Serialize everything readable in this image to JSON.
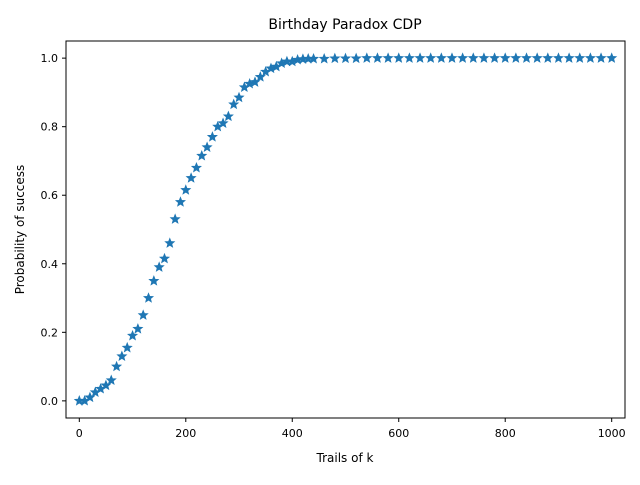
{
  "chart_data": {
    "type": "scatter",
    "title": "Birthday Paradox CDP",
    "xlabel": "Trails of k",
    "ylabel": "Probability of success",
    "xlim": [
      -25,
      1025
    ],
    "ylim": [
      -0.05,
      1.05
    ],
    "xticks": [
      0,
      200,
      400,
      600,
      800,
      1000
    ],
    "xtick_labels": [
      "0",
      "200",
      "400",
      "600",
      "800",
      "1000"
    ],
    "yticks": [
      0.0,
      0.2,
      0.4,
      0.6,
      0.8,
      1.0
    ],
    "ytick_labels": [
      "0.0",
      "0.2",
      "0.4",
      "0.6",
      "0.8",
      "1.0"
    ],
    "grid": false,
    "marker": "star",
    "color": "#1f77b4",
    "series": [
      {
        "x": [
          0,
          10,
          20,
          30,
          40,
          50,
          60,
          70,
          80,
          90,
          100,
          110,
          120,
          130,
          140,
          150,
          160,
          170,
          180,
          190,
          200,
          210,
          220,
          230,
          240,
          250,
          260,
          270,
          280,
          290,
          300,
          310,
          320,
          330,
          340,
          350,
          360,
          370,
          380,
          390,
          400,
          410,
          420,
          430,
          440,
          460,
          480,
          500,
          520,
          540,
          560,
          580,
          600,
          620,
          640,
          660,
          680,
          700,
          720,
          740,
          760,
          780,
          800,
          820,
          840,
          860,
          880,
          900,
          920,
          940,
          960,
          980,
          1000
        ],
        "y": [
          0.0,
          0.0,
          0.01,
          0.025,
          0.035,
          0.045,
          0.06,
          0.1,
          0.13,
          0.155,
          0.19,
          0.21,
          0.25,
          0.3,
          0.35,
          0.39,
          0.415,
          0.46,
          0.53,
          0.58,
          0.615,
          0.65,
          0.68,
          0.715,
          0.74,
          0.77,
          0.8,
          0.81,
          0.83,
          0.865,
          0.885,
          0.915,
          0.925,
          0.93,
          0.945,
          0.96,
          0.97,
          0.975,
          0.985,
          0.99,
          0.99,
          0.995,
          0.997,
          0.998,
          0.998,
          0.998,
          0.999,
          0.999,
          0.999,
          1.0,
          1.0,
          1.0,
          1.0,
          1.0,
          1.0,
          1.0,
          1.0,
          1.0,
          1.0,
          1.0,
          1.0,
          1.0,
          1.0,
          1.0,
          1.0,
          1.0,
          1.0,
          1.0,
          1.0,
          1.0,
          1.0,
          1.0,
          1.0
        ]
      }
    ]
  }
}
